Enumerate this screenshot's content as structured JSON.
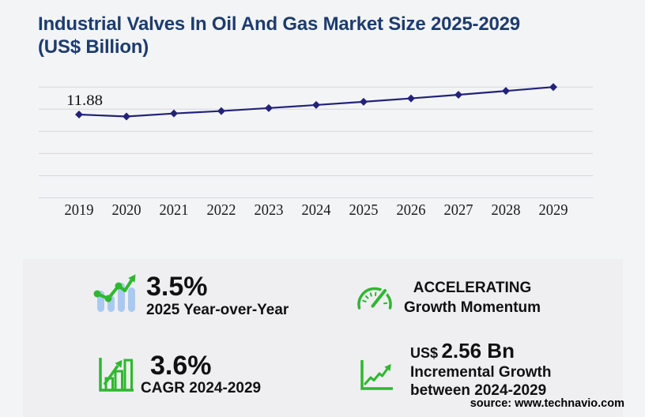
{
  "header": {
    "title_line1": "Industrial Valves In Oil And Gas Market Size 2025-2029",
    "title_line2": "(US$ Billion)"
  },
  "chart_data": {
    "type": "line",
    "title": "Industrial Valves In Oil And Gas Market Size 2025-2029 (US$ Billion)",
    "categories": [
      "2019",
      "2020",
      "2021",
      "2022",
      "2023",
      "2024",
      "2025",
      "2026",
      "2027",
      "2028",
      "2029"
    ],
    "series": [
      {
        "name": "Market size (US$ Billion)",
        "values": [
          11.88,
          11.6,
          12.03,
          12.38,
          12.8,
          13.24,
          13.7,
          14.18,
          14.7,
          15.24,
          15.8
        ]
      }
    ],
    "data_labels": [
      {
        "category": "2019",
        "text": "11.88"
      }
    ],
    "ylim": [
      0,
      15.8
    ],
    "gridline_count": 6,
    "grid": "on",
    "legend": "none",
    "xlabel": "",
    "ylabel": "",
    "line_color": "#23227a",
    "marker": "diamond"
  },
  "stats": [
    {
      "icon": "trend-bars-icon",
      "value": "3.5%",
      "label": "2025 Year-over-Year"
    },
    {
      "icon": "gauge-icon",
      "line1": "ACCELERATING",
      "line2": "Growth Momentum"
    },
    {
      "icon": "bar-growth-icon",
      "value": "3.6%",
      "label": "CAGR 2024-2029"
    },
    {
      "icon": "line-growth-icon",
      "value_prefix": "US$",
      "value": "2.56 Bn",
      "label_line1": "Incremental Growth",
      "label_line2": "between 2024-2029"
    }
  ],
  "footer": {
    "source": "source: www.technavio.com"
  },
  "colors": {
    "title": "#1d3c6e",
    "chart_line": "#23227a",
    "accent_green": "#2eb82e",
    "icon_bar_blue": "#a9c9f1",
    "background": "#f3f4f6",
    "panel": "#efeff2",
    "gridline": "#d6d6da"
  }
}
